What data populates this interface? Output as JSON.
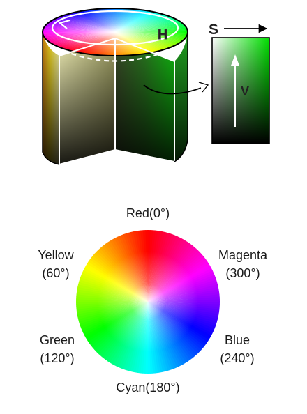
{
  "hsv_cylinder": {
    "hue_axis_label": "H",
    "saturation_axis_label": "S",
    "value_axis_label": "V"
  },
  "hue_wheel": {
    "labels": {
      "red": "Red(0°)",
      "yellow_name": "Yellow",
      "yellow_angle": "(60°)",
      "magenta_name": "Magenta",
      "magenta_angle": "(300°)",
      "green_name": "Green",
      "green_angle": "(120°)",
      "blue_name": "Blue",
      "blue_angle": "(240°)",
      "cyan": "Cyan(180°)"
    }
  },
  "colors": {
    "red": "#ff0000",
    "yellow": "#ffff00",
    "green": "#00ff00",
    "cyan": "#00ffff",
    "blue": "#0000ff",
    "magenta": "#ff00ff"
  }
}
